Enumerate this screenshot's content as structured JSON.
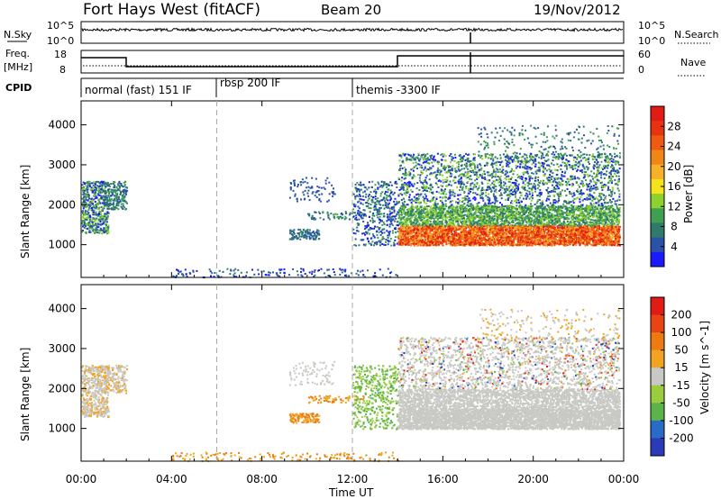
{
  "header": {
    "station": "Fort Hays West (fitACF)",
    "beam": "Beam 20",
    "date": "19/Nov/2012"
  },
  "noise_panel": {
    "left_label": "N.Sky",
    "right_label": "N.Search",
    "left_ticks": [
      "10^5",
      "10^0"
    ],
    "right_ticks": [
      "10^5",
      "10^0"
    ]
  },
  "freq_panel": {
    "left_label_1": "Freq.",
    "left_label_2": "[MHz]",
    "right_label": "Nave",
    "left_ticks": [
      "18",
      "8"
    ],
    "right_ticks": [
      "60",
      "0"
    ]
  },
  "cpid_panel": {
    "label": "CPID",
    "programs": [
      "normal (fast) 151 IF",
      "rbsp 200 IF",
      "themis -3300 IF"
    ]
  },
  "chart_data": {
    "type": "heatmap",
    "x_ticks": [
      "00:00",
      "04:00",
      "08:00",
      "12:00",
      "16:00",
      "20:00",
      "00:00"
    ],
    "x_tick_hours": [
      0,
      4,
      8,
      12,
      16,
      20,
      24
    ],
    "xlabel": "Time UT",
    "xlim_hours": [
      0,
      24
    ],
    "ylim_km": [
      180,
      4600
    ],
    "y_ticks": [
      "1000",
      "2000",
      "3000",
      "4000"
    ],
    "y_tick_values": [
      1000,
      2000,
      3000,
      4000
    ],
    "ylabel": "Slant Range [km]",
    "program_boundaries_hours": [
      6,
      12
    ],
    "panels": [
      {
        "quantity": "Power",
        "colorbar_label": "Power [dB]",
        "colorbar_ticks": [
          "28",
          "24",
          "20",
          "16",
          "12",
          "8",
          "4"
        ],
        "colorbar_range": [
          0,
          30
        ],
        "colors": [
          "#1a1aff",
          "#2a52a8",
          "#2f7a6a",
          "#3fa052",
          "#8ed02f",
          "#f4e21a",
          "#f7b02a",
          "#f08518",
          "#ee5a12",
          "#e83212",
          "#e11b15"
        ]
      },
      {
        "quantity": "Velocity",
        "colorbar_label": "Velocity [m s^-1]",
        "colorbar_ticks": [
          "200",
          "100",
          "50",
          "15",
          "-15",
          "-50",
          "-100",
          "-200"
        ],
        "colorbar_range": [
          -250,
          250
        ],
        "colors": [
          "#2a3ab8",
          "#2a6ac8",
          "#5ab44a",
          "#9acc40",
          "#c8c8c4",
          "#f0a422",
          "#ee7a12",
          "#e84414",
          "#e11b15"
        ]
      }
    ]
  }
}
